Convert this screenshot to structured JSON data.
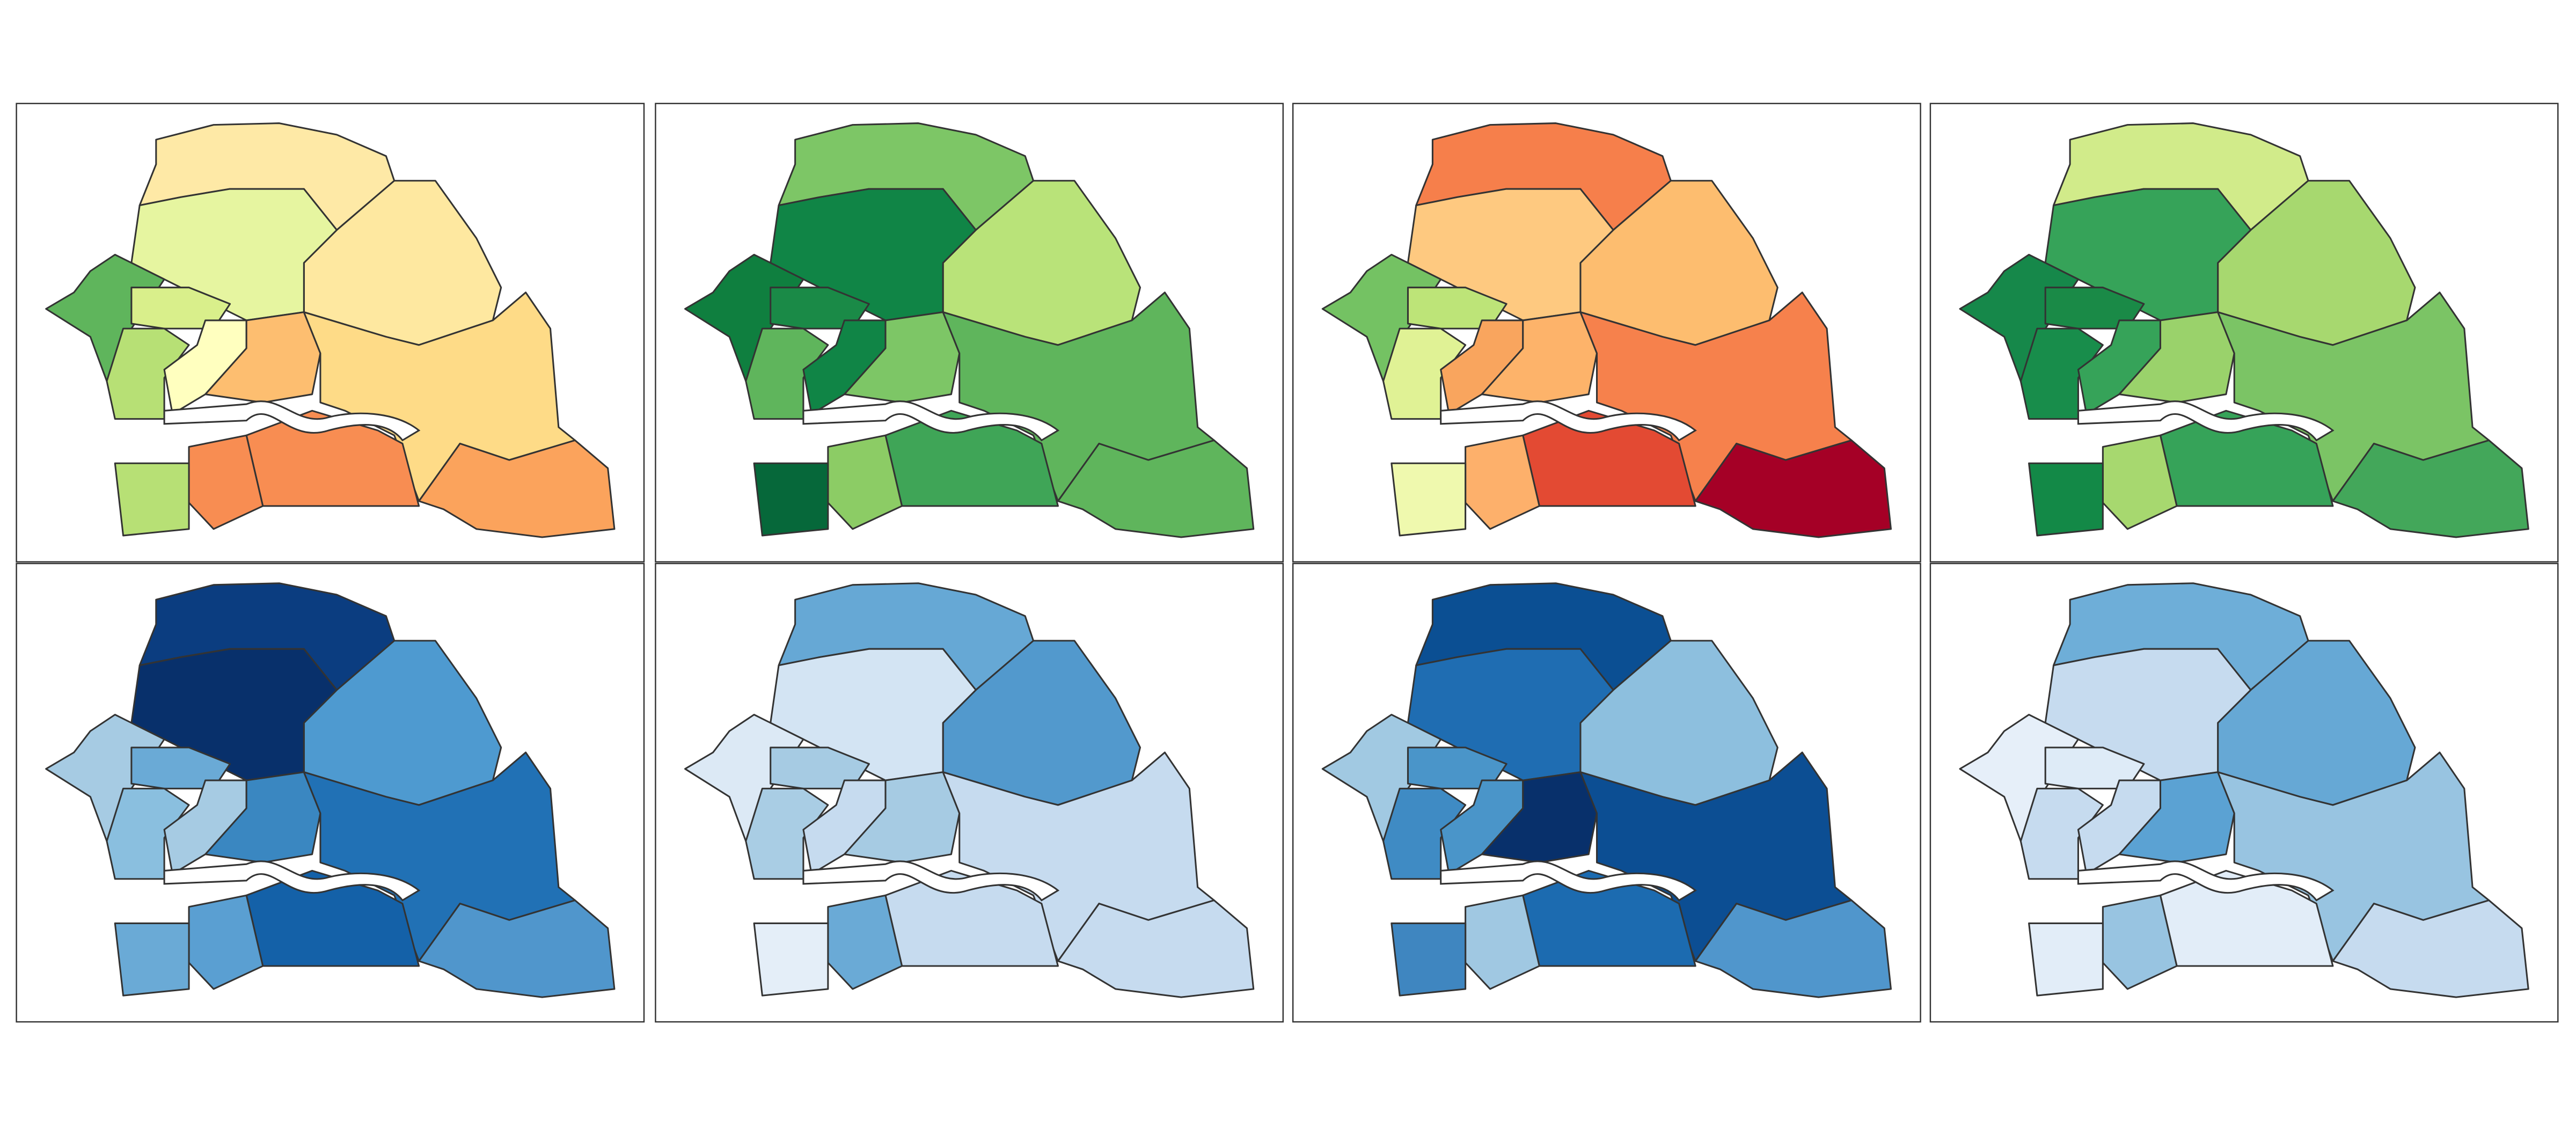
{
  "panels": [
    {
      "colors": [
        "#fee9a6",
        "#fee8a0",
        "#e6f5a0",
        "#5fb55c",
        "#d9ef8b",
        "#b7e075",
        "#ffffbf",
        "#fdbe70",
        "#fedb87",
        "#fba35c",
        "#f88d52",
        "#f88d52",
        "#b7e075"
      ]
    },
    {
      "colors": [
        "#7dc666",
        "#b9e379",
        "#108546",
        "#0f7f3f",
        "#1a8a47",
        "#5fb55c",
        "#108546",
        "#7dc666",
        "#5fb55c",
        "#5fb55c",
        "#3fa557",
        "#8ccc65",
        "#06683a"
      ]
    },
    {
      "colors": [
        "#f67f4b",
        "#fdbd6f",
        "#fec980",
        "#74c263",
        "#bde478",
        "#e0f295",
        "#f9a55e",
        "#fdb36a",
        "#f6814c",
        "#a50026",
        "#e34a33",
        "#fdb06b",
        "#eff9ae"
      ]
    },
    {
      "colors": [
        "#d1eb8a",
        "#a7d86f",
        "#36a359",
        "#16884a",
        "#1a8a47",
        "#188d4b",
        "#36a359",
        "#9ad26b",
        "#7bc465",
        "#43a75a",
        "#36a359",
        "#a7d86f",
        "#138947"
      ]
    },
    {
      "colors": [
        "#0b3d80",
        "#4e9ad0",
        "#08306b",
        "#a6cbe3",
        "#6aaad6",
        "#8abfdf",
        "#a6cbe3",
        "#3a87c1",
        "#2171b5",
        "#5096cc",
        "#1461a8",
        "#5a9fd2",
        "#6aaad6"
      ]
    },
    {
      "colors": [
        "#66a8d5",
        "#5299cd",
        "#d3e4f3",
        "#dce9f5",
        "#a6cbe3",
        "#a9cde4",
        "#c6dbef",
        "#a6cbe3",
        "#c6dbef",
        "#c6dbef",
        "#c6dbef",
        "#6aaad6",
        "#e4eef8"
      ]
    },
    {
      "colors": [
        "#0b4f93",
        "#8dbfde",
        "#1f6db2",
        "#a1c9e2",
        "#4a95c9",
        "#3f8bc4",
        "#4a95c9",
        "#08306b",
        "#0c4e93",
        "#5096cc",
        "#1c6bb0",
        "#a0c8e2",
        "#3f86c0"
      ]
    },
    {
      "colors": [
        "#6eaed8",
        "#66a8d5",
        "#c6dbef",
        "#e6eff9",
        "#deebf7",
        "#c6dbef",
        "#c6dbef",
        "#5ba2d3",
        "#98c4e1",
        "#c6dbef",
        "#e2edf8",
        "#98c4e1",
        "#e2edf8"
      ]
    }
  ]
}
